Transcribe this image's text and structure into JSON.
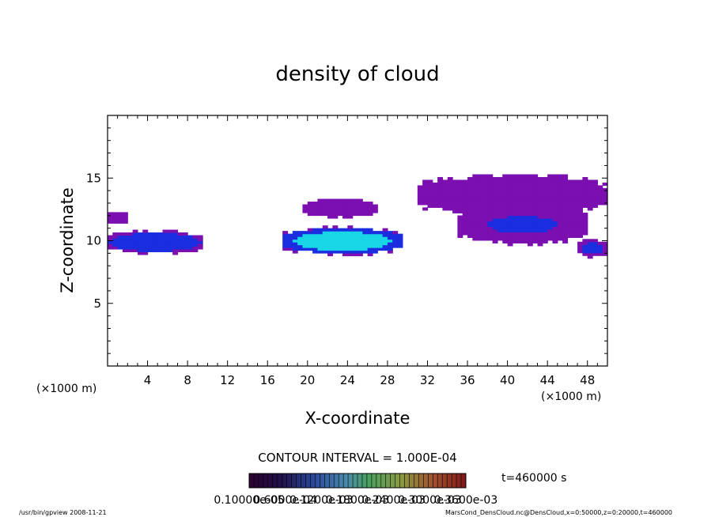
{
  "chart_data": {
    "type": "heatmap",
    "title": "density of cloud",
    "xlabel": "X-coordinate",
    "ylabel": "Z-coordinate",
    "x_unit_left": "(×1000 m)",
    "x_unit_right": "(×1000 m)",
    "xlim": [
      0,
      50
    ],
    "ylim": [
      0,
      20
    ],
    "x_ticks": [
      4,
      8,
      12,
      16,
      20,
      24,
      28,
      32,
      36,
      40,
      44,
      48
    ],
    "y_ticks": [
      5,
      10,
      15
    ],
    "contour_interval": "CONTOUR INTERVAL = 1.000E-04",
    "time_label": "t=460000 s",
    "colorbar_labels": [
      "0.10000e-05",
      "0.6000e-04",
      "0.1200e-03",
      "0.1800e-03",
      "0.2400e-03",
      "0.3000e-03",
      "0.3600e-03"
    ],
    "colors": {
      "low": "#7b0fb0",
      "mid": "#1a2ee0",
      "high": "#19d6e6"
    },
    "regions": [
      {
        "x": [
          0,
          9.5
        ],
        "z": [
          8.9,
          10.9
        ],
        "peak": 0.55
      },
      {
        "x": [
          17.5,
          29.5
        ],
        "z": [
          8.8,
          11.2
        ],
        "peak": 0.9
      },
      {
        "x": [
          19.5,
          27.0
        ],
        "z": [
          11.8,
          13.4
        ],
        "peak": 0.05
      },
      {
        "x": [
          31.0,
          50.0
        ],
        "z": [
          12.0,
          15.4
        ],
        "peak": 0.15
      },
      {
        "x": [
          35.0,
          48.0
        ],
        "z": [
          9.6,
          13.0
        ],
        "peak": 0.3
      },
      {
        "x": [
          47.0,
          50.0
        ],
        "z": [
          8.6,
          10.2
        ],
        "peak": 0.35
      },
      {
        "x": [
          0,
          2.0
        ],
        "z": [
          11.4,
          12.4
        ],
        "peak": 0.05
      }
    ]
  },
  "footer": {
    "left": "/usr/bin/gpview  2008-11-21",
    "right": "MarsCond_DensCloud.nc@DensCloud,x=0:50000,z=0:20000,t=460000"
  }
}
